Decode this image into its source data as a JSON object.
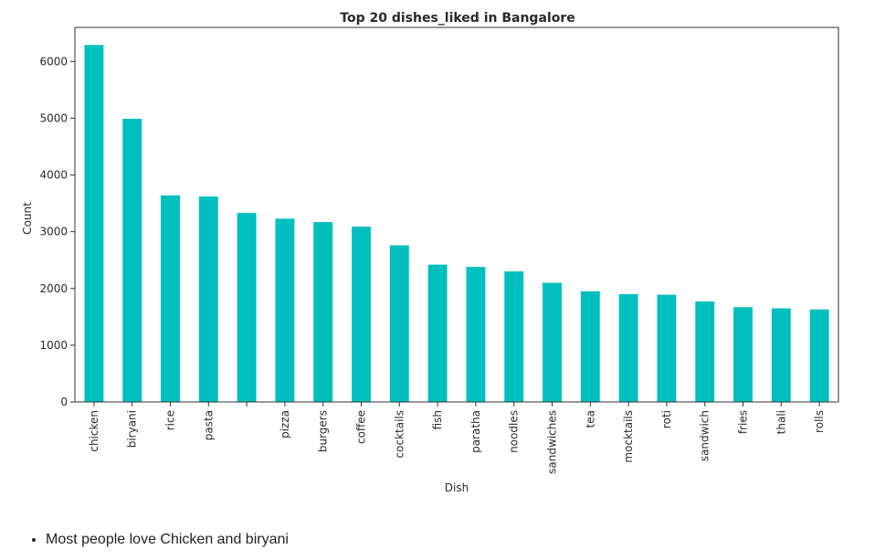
{
  "chart_data": {
    "type": "bar",
    "title": "Top 20 dishes_liked in Bangalore",
    "xlabel": "Dish",
    "ylabel": "Count",
    "categories": [
      "chicken",
      "biryani",
      "rice",
      "pasta",
      "",
      "pizza",
      "burgers",
      "coffee",
      "cocktails",
      "fish",
      "paratha",
      "noodles",
      "sandwiches",
      "tea",
      "mocktails",
      "roti",
      "sandwich",
      "fries",
      "thali",
      "rolls"
    ],
    "values": [
      6290,
      4990,
      3640,
      3620,
      3330,
      3230,
      3170,
      3090,
      2760,
      2420,
      2380,
      2300,
      2100,
      1950,
      1900,
      1890,
      1770,
      1670,
      1650,
      1630
    ],
    "yticks": [
      0,
      1000,
      2000,
      3000,
      4000,
      5000,
      6000
    ],
    "ylim": [
      0,
      6600
    ],
    "bar_color": "#00bfbf",
    "grid": false,
    "legend": null
  },
  "notes": [
    "Most people love Chicken and biryani"
  ]
}
